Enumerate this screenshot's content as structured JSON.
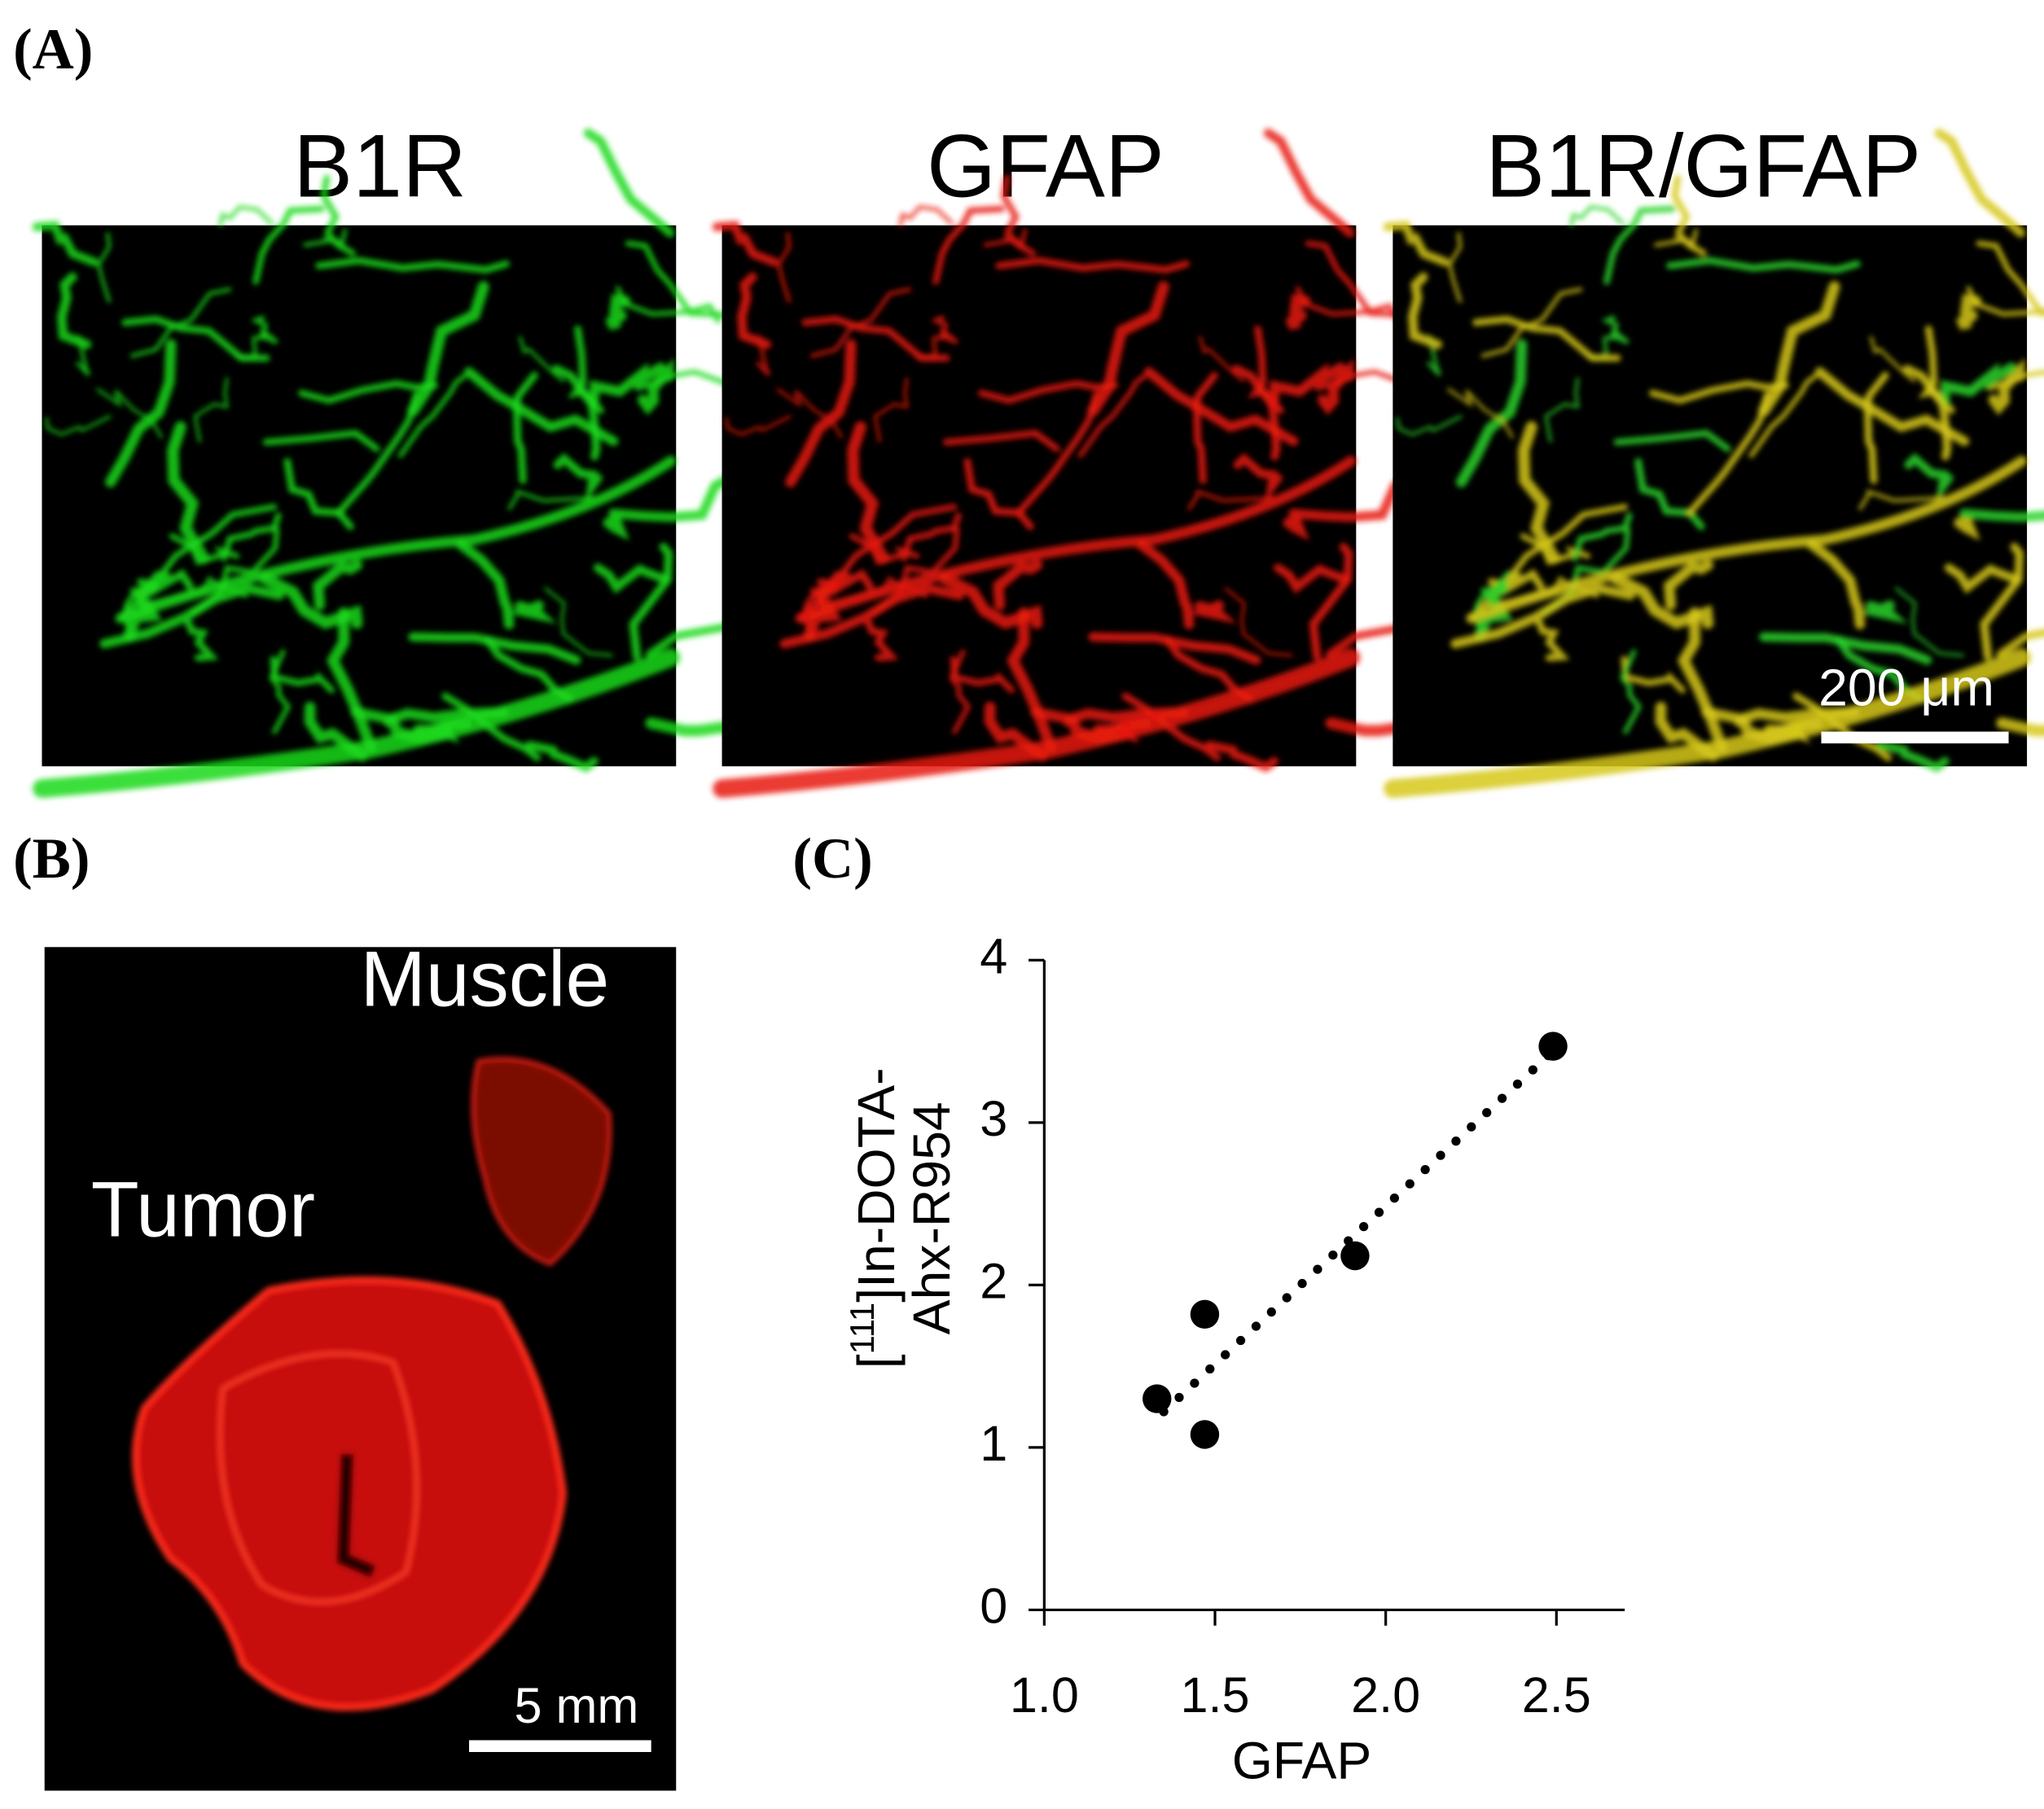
{
  "panel_a": {
    "label": "(A)",
    "titles": [
      "B1R",
      "GFAP",
      "B1R/GFAP"
    ],
    "scale_bar": "200 μm"
  },
  "panel_b": {
    "label": "(B)",
    "muscle": "Muscle",
    "tumor": "Tumor",
    "scale_bar": "5 mm"
  },
  "panel_c": {
    "label": "(C)"
  },
  "chart_data": {
    "type": "scatter",
    "xlabel": "GFAP",
    "ylabel": [
      "[",
      "111",
      "]In-DOTA-",
      "Ahx-R954"
    ],
    "x": [
      1.33,
      1.47,
      1.47,
      1.91,
      2.49
    ],
    "y": [
      1.3,
      1.82,
      1.08,
      2.18,
      3.47
    ],
    "color": "#000000",
    "trendline": {
      "x": [
        1.35,
        2.48
      ],
      "y": [
        1.22,
        3.42
      ]
    },
    "xlim": [
      1.0,
      2.7
    ],
    "ylim": [
      0,
      4
    ],
    "xticks": [
      {
        "value": 1.0,
        "label": "1.0"
      },
      1.5,
      {
        "value": 2.0,
        "label": "2.0"
      },
      2.5
    ],
    "yticks": [
      0,
      1,
      2,
      3,
      4
    ]
  }
}
